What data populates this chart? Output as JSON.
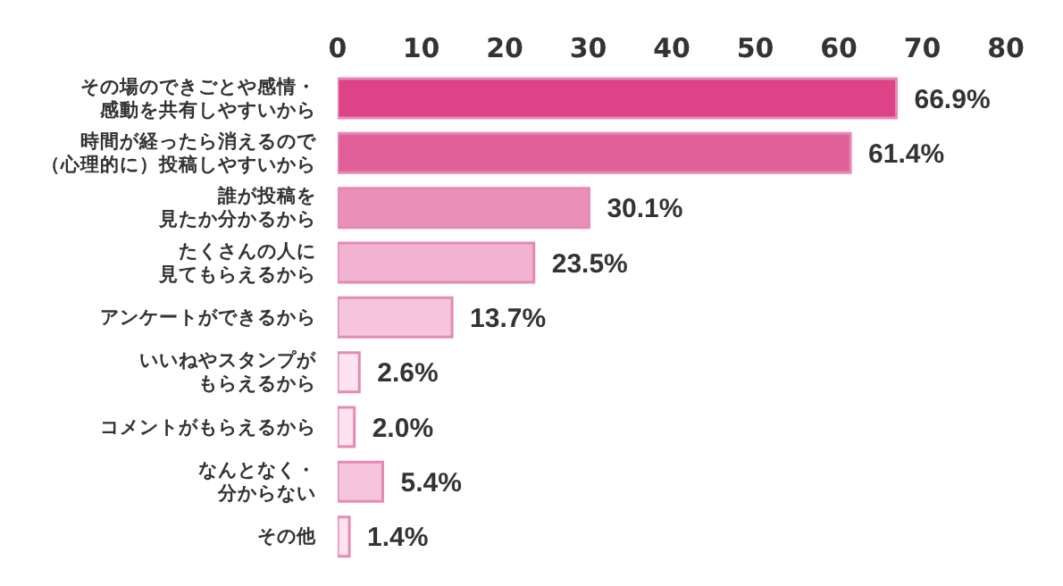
{
  "chart_data": {
    "type": "bar",
    "orientation": "horizontal",
    "categories": [
      "その場のできごとや感情・感動を共有しやすいから",
      "時間が経ったら消えるので（心理的に）投稿しやすいから",
      "誰が投稿を見たか分かるから",
      "たくさんの人に見てもらえるから",
      "アンケートができるから",
      "いいねやスタンプがもらえるから",
      "コメントがもらえるから",
      "なんとなく・分からない",
      "その他"
    ],
    "values": [
      66.9,
      61.4,
      30.1,
      23.5,
      13.7,
      2.6,
      2.0,
      5.4,
      1.4
    ],
    "colors": [
      "#de4387",
      "#e2609a",
      "#ea8fb9",
      "#f2b3d2",
      "#f5c4dd",
      "#fce3ef",
      "#fce3ef",
      "#f5c4dd",
      "#fce3ef"
    ],
    "value_labels": [
      "66.9%",
      "61.4%",
      "30.1%",
      "23.5%",
      "13.7%",
      "2.6%",
      "2.0%",
      "5.4%",
      "1.4%"
    ],
    "xlim": [
      0,
      80
    ],
    "xticks": [
      0,
      10,
      20,
      30,
      40,
      50,
      60,
      70,
      80
    ],
    "grid": false,
    "legend": false
  }
}
